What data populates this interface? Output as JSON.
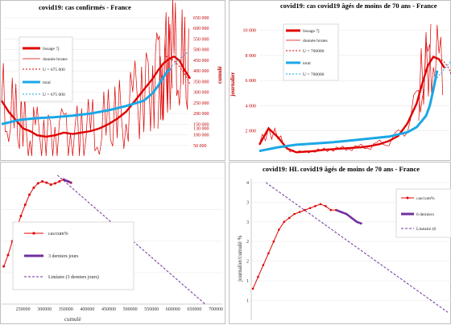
{
  "charts": {
    "p1": {
      "title": "covid19: cas confirmés - France",
      "right_axis_label": "cumulé",
      "right_ticks": [
        "650 000",
        "600 000",
        "550 000",
        "500 000",
        "450 000",
        "400 000",
        "350 000",
        "300 000",
        "250 000",
        "200 000",
        "150 000",
        "130 000",
        "100 000",
        "50 000"
      ],
      "legend": [
        "lissage 7j",
        "donnée brutes",
        "U = 675 000",
        "total",
        "U = 675 000"
      ]
    },
    "p2": {
      "title": "covid19: cas covid19 âgés de moins de 70 ans - France",
      "left_axis_label": "journalier",
      "left_ticks": [
        "10 000",
        "8 000",
        "6 000",
        "4 000",
        "2 000"
      ],
      "legend": [
        "lissage 7j",
        "donnée brutes",
        "U = 700000",
        "total",
        "U = 700000"
      ]
    },
    "p3": {
      "x_ticks": [
        "250000",
        "300000",
        "350000",
        "400000",
        "450000",
        "500000",
        "550000",
        "600000",
        "650000",
        "700000"
      ],
      "x_label": "cumulé",
      "legend": [
        "cas/cum%",
        "3 derniers jours",
        "Linéaire (3 derniers jours)"
      ]
    },
    "p4": {
      "title": "covid19: HL covid19 âgés de moins de 70 ans - France",
      "y_label": "journalier/cumulé %",
      "y_ticks": [
        "4",
        "3",
        "3",
        "2",
        "2",
        "1",
        "1"
      ],
      "legend": [
        "cas/cum%",
        "6 derniers",
        "Linéaire (6"
      ]
    }
  },
  "colors": {
    "red": "#e00000",
    "blue": "#1aa7e6",
    "purple": "#7030a0",
    "dash_red": "#e00000",
    "dash_blue": "#1aa7e6"
  },
  "chart_data": [
    {
      "type": "line",
      "title": "covid19: cas confirmés - France",
      "ylabel_right": "cumulé",
      "ylim_right": [
        0,
        650000
      ],
      "legend": "top-left",
      "series": [
        {
          "name": "lissage 7j",
          "x": [
            0,
            4,
            8,
            12,
            16,
            20,
            25,
            30,
            35,
            40,
            45,
            50,
            55,
            60,
            65,
            70,
            75,
            80,
            85,
            88,
            91,
            94,
            97,
            100,
            103,
            106
          ],
          "values": [
            0.4,
            0.32,
            0.26,
            0.2,
            0.18,
            0.15,
            0.14,
            0.15,
            0.17,
            0.16,
            0.17,
            0.18,
            0.2,
            0.23,
            0.27,
            0.32,
            0.4,
            0.48,
            0.56,
            0.62,
            0.67,
            0.7,
            0.72,
            0.69,
            0.62,
            0.56
          ]
        },
        {
          "name": "total",
          "x": [
            0,
            10,
            20,
            30,
            40,
            50,
            60,
            70,
            80,
            85,
            88,
            91,
            93,
            95
          ],
          "values": [
            150000,
            170000,
            178000,
            183000,
            190000,
            200000,
            215000,
            235000,
            260000,
            295000,
            330000,
            370000,
            395000,
            410000
          ]
        }
      ]
    },
    {
      "type": "line",
      "title": "covid19: cas covid19 âgés de moins de 70 ans - France",
      "ylabel": "journalier",
      "ylim": [
        0,
        11000
      ],
      "legend": "top-left",
      "series": [
        {
          "name": "lissage 7j",
          "x": [
            0,
            5,
            10,
            15,
            20,
            25,
            30,
            35,
            40,
            45,
            50,
            55,
            60,
            65,
            70,
            75,
            80,
            85,
            88,
            91,
            94,
            97,
            100
          ],
          "values": [
            900,
            2200,
            1500,
            600,
            300,
            350,
            400,
            500,
            550,
            600,
            650,
            700,
            800,
            950,
            1200,
            1600,
            2600,
            4200,
            5800,
            7200,
            7900,
            7700,
            7000
          ]
        },
        {
          "name": "total",
          "x": [
            0,
            10,
            20,
            30,
            40,
            50,
            60,
            70,
            80,
            85,
            90,
            92,
            94,
            96
          ],
          "values": [
            400,
            700,
            900,
            1000,
            1100,
            1250,
            1400,
            1550,
            1900,
            2300,
            3200,
            4000,
            5300,
            6800
          ]
        }
      ]
    },
    {
      "type": "scatter",
      "xlabel": "cumulé",
      "x": [
        205000,
        215000,
        225000,
        235000,
        245000,
        255000,
        265000,
        275000,
        285000,
        295000,
        305000,
        315000,
        325000,
        335000,
        345000,
        355000,
        362000
      ],
      "values": [
        0.6,
        0.78,
        1.0,
        1.2,
        1.4,
        1.58,
        1.74,
        1.85,
        1.92,
        1.95,
        1.93,
        1.9,
        1.92,
        1.95,
        1.98,
        1.95,
        1.93
      ],
      "series": [
        {
          "name": "3 derniers jours",
          "x": [
            345000,
            355000,
            362000
          ],
          "values": [
            1.98,
            1.95,
            1.93
          ]
        },
        {
          "name": "Linéaire (3 derniers jours)",
          "x": [
            330000,
            675000
          ],
          "values": [
            2.05,
            0.0
          ]
        }
      ]
    },
    {
      "type": "scatter",
      "title": "covid19: HL covid19 âgés de moins de 70 ans - France",
      "ylabel": "journalier/cumulé %",
      "x": [
        0,
        4,
        8,
        12,
        16,
        20,
        24,
        28,
        32,
        36,
        40,
        44,
        48,
        52,
        56,
        60,
        64,
        68,
        72,
        76
      ],
      "values": [
        1.3,
        1.6,
        1.9,
        2.2,
        2.5,
        2.8,
        3.0,
        3.1,
        3.2,
        3.25,
        3.3,
        3.35,
        3.4,
        3.45,
        3.4,
        3.3,
        3.3,
        3.25,
        3.2,
        3.1
      ],
      "series": [
        {
          "name": "6 derniers",
          "x": [
            64,
            68,
            72,
            76,
            80,
            84
          ],
          "values": [
            3.3,
            3.25,
            3.2,
            3.1,
            3.0,
            2.95
          ]
        },
        {
          "name": "Linéaire (6",
          "x": [
            10,
            150
          ],
          "values": [
            4.0,
            0.7
          ]
        }
      ]
    }
  ]
}
